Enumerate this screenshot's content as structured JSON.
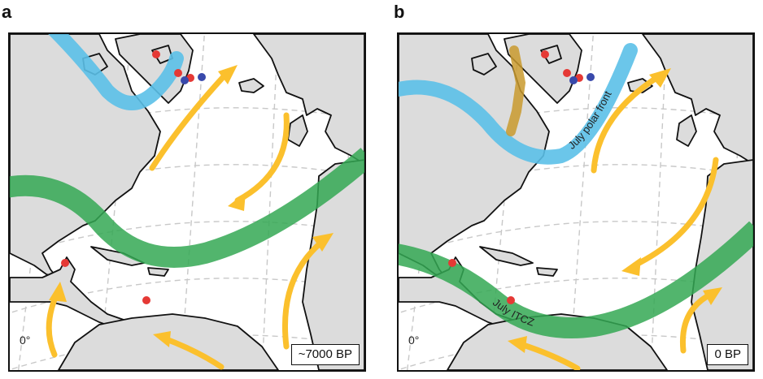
{
  "panels": [
    {
      "id": "a",
      "letter": "a",
      "age_label": "~7000 BP",
      "longitude_label": "0°",
      "curve_labels": []
    },
    {
      "id": "b",
      "letter": "b",
      "age_label": "0 BP",
      "longitude_label": "0°",
      "curve_labels": [
        "July polar front",
        "July ITCZ"
      ]
    }
  ],
  "colors": {
    "land": "#dcdcdc",
    "ocean": "#ffffff",
    "coastline": "#111111",
    "graticule": "#c8c8c8",
    "polar_front": "#5bc0e8",
    "itcz": "#34a853",
    "wind_arrow": "#fbc02d",
    "site_red": "#e53935",
    "site_blue": "#3949ab"
  },
  "icons": [
    "red-site-marker",
    "blue-site-marker",
    "wind-arrow"
  ]
}
